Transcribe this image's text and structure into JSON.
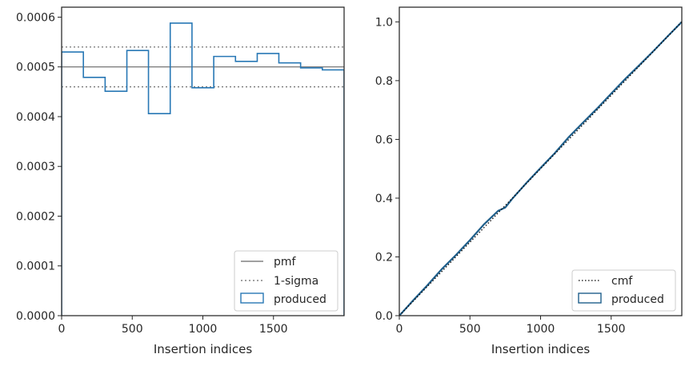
{
  "chart_data": [
    {
      "type": "histogram-step",
      "xlabel": "Insertion indices",
      "xlim": [
        0,
        2000
      ],
      "ylim": [
        0,
        0.00062
      ],
      "xticks": [
        0,
        500,
        1000,
        1500
      ],
      "xtick_labels": [
        "0",
        "500",
        "1000",
        "1500"
      ],
      "yticks": [
        0,
        0.0001,
        0.0002,
        0.0003,
        0.0004,
        0.0005,
        0.0006
      ],
      "ytick_labels": [
        "0.0000",
        "0.0001",
        "0.0002",
        "0.0003",
        "0.0004",
        "0.0005",
        "0.0006"
      ],
      "legend_position": "lower-right",
      "pmf": {
        "label": "pmf",
        "value": 0.0005,
        "color": "#808080"
      },
      "sigma": {
        "label": "1-sigma",
        "upper": 0.00054,
        "lower": 0.00046,
        "color": "#808080"
      },
      "produced": {
        "label": "produced",
        "color": "#2878b5",
        "bin_edges": [
          0,
          154,
          308,
          462,
          615,
          769,
          923,
          1077,
          1231,
          1385,
          1538,
          1692,
          1846,
          2000
        ],
        "values": [
          0.00053,
          0.000479,
          0.000451,
          0.000533,
          0.000406,
          0.000588,
          0.000458,
          0.000521,
          0.000511,
          0.000527,
          0.000508,
          0.000498,
          0.000494
        ]
      }
    },
    {
      "type": "line",
      "xlabel": "Insertion indices",
      "xlim": [
        0,
        2000
      ],
      "ylim": [
        0,
        1.05
      ],
      "xticks": [
        0,
        500,
        1000,
        1500
      ],
      "xtick_labels": [
        "0",
        "500",
        "1000",
        "1500"
      ],
      "yticks": [
        0,
        0.2,
        0.4,
        0.6,
        0.8,
        1.0
      ],
      "ytick_labels": [
        "0.0",
        "0.2",
        "0.4",
        "0.6",
        "0.8",
        "1.0"
      ],
      "legend_position": "lower-right",
      "cmf": {
        "label": "cmf",
        "x": [
          0,
          2000
        ],
        "y": [
          0,
          1.0
        ],
        "color": "#000000"
      },
      "produced": {
        "label": "produced",
        "color": "#1f5f8b",
        "x": [
          0,
          100,
          200,
          300,
          400,
          500,
          600,
          700,
          750,
          800,
          900,
          1000,
          1100,
          1200,
          1300,
          1400,
          1500,
          1600,
          1700,
          1800,
          1900,
          2000
        ],
        "y": [
          0,
          0.053,
          0.104,
          0.158,
          0.206,
          0.257,
          0.311,
          0.357,
          0.368,
          0.398,
          0.452,
          0.503,
          0.553,
          0.608,
          0.657,
          0.705,
          0.756,
          0.806,
          0.853,
          0.901,
          0.951,
          1.0
        ]
      }
    }
  ]
}
